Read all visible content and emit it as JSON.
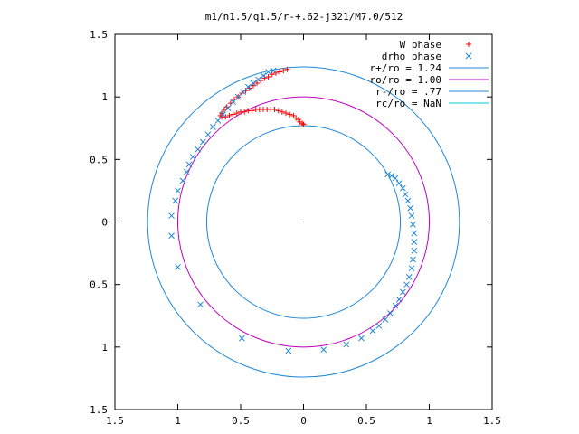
{
  "chart_data": {
    "type": "scatter",
    "title": "m1/n1.5/q1.5/r-+.62-j321/M7.0/512",
    "xlabel": "",
    "ylabel": "",
    "xlim": [
      -1.5,
      1.5
    ],
    "ylim": [
      -1.5,
      1.5
    ],
    "x_ticks": [
      {
        "value": -1.5,
        "label": "1.5"
      },
      {
        "value": -1.0,
        "label": "1"
      },
      {
        "value": -0.5,
        "label": "0.5"
      },
      {
        "value": 0.0,
        "label": "0"
      },
      {
        "value": 0.5,
        "label": "0.5"
      },
      {
        "value": 1.0,
        "label": "1"
      },
      {
        "value": 1.5,
        "label": "1.5"
      }
    ],
    "y_ticks": [
      {
        "value": 1.5,
        "label": "1.5"
      },
      {
        "value": 1.0,
        "label": "1"
      },
      {
        "value": 0.5,
        "label": "0.5"
      },
      {
        "value": 0.0,
        "label": "0"
      },
      {
        "value": -0.5,
        "label": "0.5"
      },
      {
        "value": -1.0,
        "label": "1"
      },
      {
        "value": -1.5,
        "label": "1.5"
      }
    ],
    "grid": false,
    "legend_position": "top-right",
    "series": [
      {
        "name": "W phase",
        "kind": "points",
        "marker": "plus",
        "color": "#ff0000",
        "points": [
          [
            -0.13,
            1.22
          ],
          [
            -0.16,
            1.21
          ],
          [
            -0.19,
            1.2
          ],
          [
            -0.22,
            1.19
          ],
          [
            -0.25,
            1.18
          ],
          [
            -0.28,
            1.16
          ],
          [
            -0.31,
            1.15
          ],
          [
            -0.34,
            1.13
          ],
          [
            -0.37,
            1.11
          ],
          [
            -0.4,
            1.09
          ],
          [
            -0.43,
            1.07
          ],
          [
            -0.46,
            1.05
          ],
          [
            -0.49,
            1.03
          ],
          [
            -0.52,
            1.0
          ],
          [
            -0.55,
            0.98
          ],
          [
            -0.58,
            0.95
          ],
          [
            -0.61,
            0.92
          ],
          [
            -0.63,
            0.9
          ],
          [
            -0.65,
            0.87
          ],
          [
            -0.66,
            0.85
          ],
          [
            -0.65,
            0.84
          ],
          [
            -0.62,
            0.84
          ],
          [
            -0.59,
            0.85
          ],
          [
            -0.56,
            0.86
          ],
          [
            -0.53,
            0.87
          ],
          [
            -0.5,
            0.88
          ],
          [
            -0.47,
            0.88
          ],
          [
            -0.44,
            0.89
          ],
          [
            -0.41,
            0.89
          ],
          [
            -0.38,
            0.9
          ],
          [
            -0.35,
            0.9
          ],
          [
            -0.32,
            0.9
          ],
          [
            -0.29,
            0.9
          ],
          [
            -0.26,
            0.9
          ],
          [
            -0.23,
            0.9
          ],
          [
            -0.2,
            0.89
          ],
          [
            -0.17,
            0.88
          ],
          [
            -0.14,
            0.87
          ],
          [
            -0.11,
            0.86
          ],
          [
            -0.08,
            0.85
          ],
          [
            -0.06,
            0.83
          ],
          [
            -0.04,
            0.82
          ],
          [
            -0.03,
            0.8
          ],
          [
            -0.01,
            0.79
          ],
          [
            0.0,
            0.78
          ]
        ]
      },
      {
        "name": "drho phase",
        "kind": "points",
        "marker": "cross",
        "color": "#1e88d8",
        "points": [
          [
            -0.24,
            1.21
          ],
          [
            -0.28,
            1.2
          ],
          [
            -0.32,
            1.17
          ],
          [
            -0.36,
            1.14
          ],
          [
            -0.4,
            1.11
          ],
          [
            -0.44,
            1.08
          ],
          [
            -0.48,
            1.04
          ],
          [
            -0.52,
            1.0
          ],
          [
            -0.56,
            0.96
          ],
          [
            -0.6,
            0.91
          ],
          [
            -0.64,
            0.86
          ],
          [
            -0.68,
            0.81
          ],
          [
            -0.72,
            0.76
          ],
          [
            -0.76,
            0.7
          ],
          [
            -0.8,
            0.64
          ],
          [
            -0.84,
            0.58
          ],
          [
            -0.88,
            0.52
          ],
          [
            -0.91,
            0.46
          ],
          [
            -0.93,
            0.4
          ],
          [
            -0.96,
            0.33
          ],
          [
            -1.0,
            0.25
          ],
          [
            -1.02,
            0.17
          ],
          [
            -1.05,
            0.05
          ],
          [
            -1.05,
            -0.11
          ],
          [
            -1.0,
            -0.36
          ],
          [
            -0.82,
            -0.66
          ],
          [
            -0.49,
            -0.93
          ],
          [
            -0.12,
            -1.03
          ],
          [
            0.16,
            -1.02
          ],
          [
            0.34,
            -0.98
          ],
          [
            0.46,
            -0.93
          ],
          [
            0.55,
            -0.87
          ],
          [
            0.6,
            -0.83
          ],
          [
            0.65,
            -0.78
          ],
          [
            0.69,
            -0.73
          ],
          [
            0.73,
            -0.67
          ],
          [
            0.76,
            -0.62
          ],
          [
            0.79,
            -0.56
          ],
          [
            0.82,
            -0.5
          ],
          [
            0.84,
            -0.44
          ],
          [
            0.86,
            -0.37
          ],
          [
            0.87,
            -0.3
          ],
          [
            0.88,
            -0.23
          ],
          [
            0.88,
            -0.16
          ],
          [
            0.88,
            -0.09
          ],
          [
            0.87,
            -0.02
          ],
          [
            0.86,
            0.05
          ],
          [
            0.85,
            0.11
          ],
          [
            0.83,
            0.17
          ],
          [
            0.81,
            0.22
          ],
          [
            0.79,
            0.27
          ],
          [
            0.76,
            0.31
          ],
          [
            0.73,
            0.35
          ],
          [
            0.7,
            0.37
          ],
          [
            0.67,
            0.38
          ]
        ]
      },
      {
        "name": "r+/ro = 1.24",
        "kind": "circle",
        "radius": 1.24,
        "color": "#1e88d8"
      },
      {
        "name": "ro/ro = 1.00",
        "kind": "circle",
        "radius": 1.0,
        "color": "#c000c0"
      },
      {
        "name": "r-/ro = .77",
        "kind": "circle",
        "radius": 0.77,
        "color": "#1e88d8"
      },
      {
        "name": "rc/ro = NaN",
        "kind": "circle",
        "radius": null,
        "color": "#00c8d8"
      }
    ]
  }
}
